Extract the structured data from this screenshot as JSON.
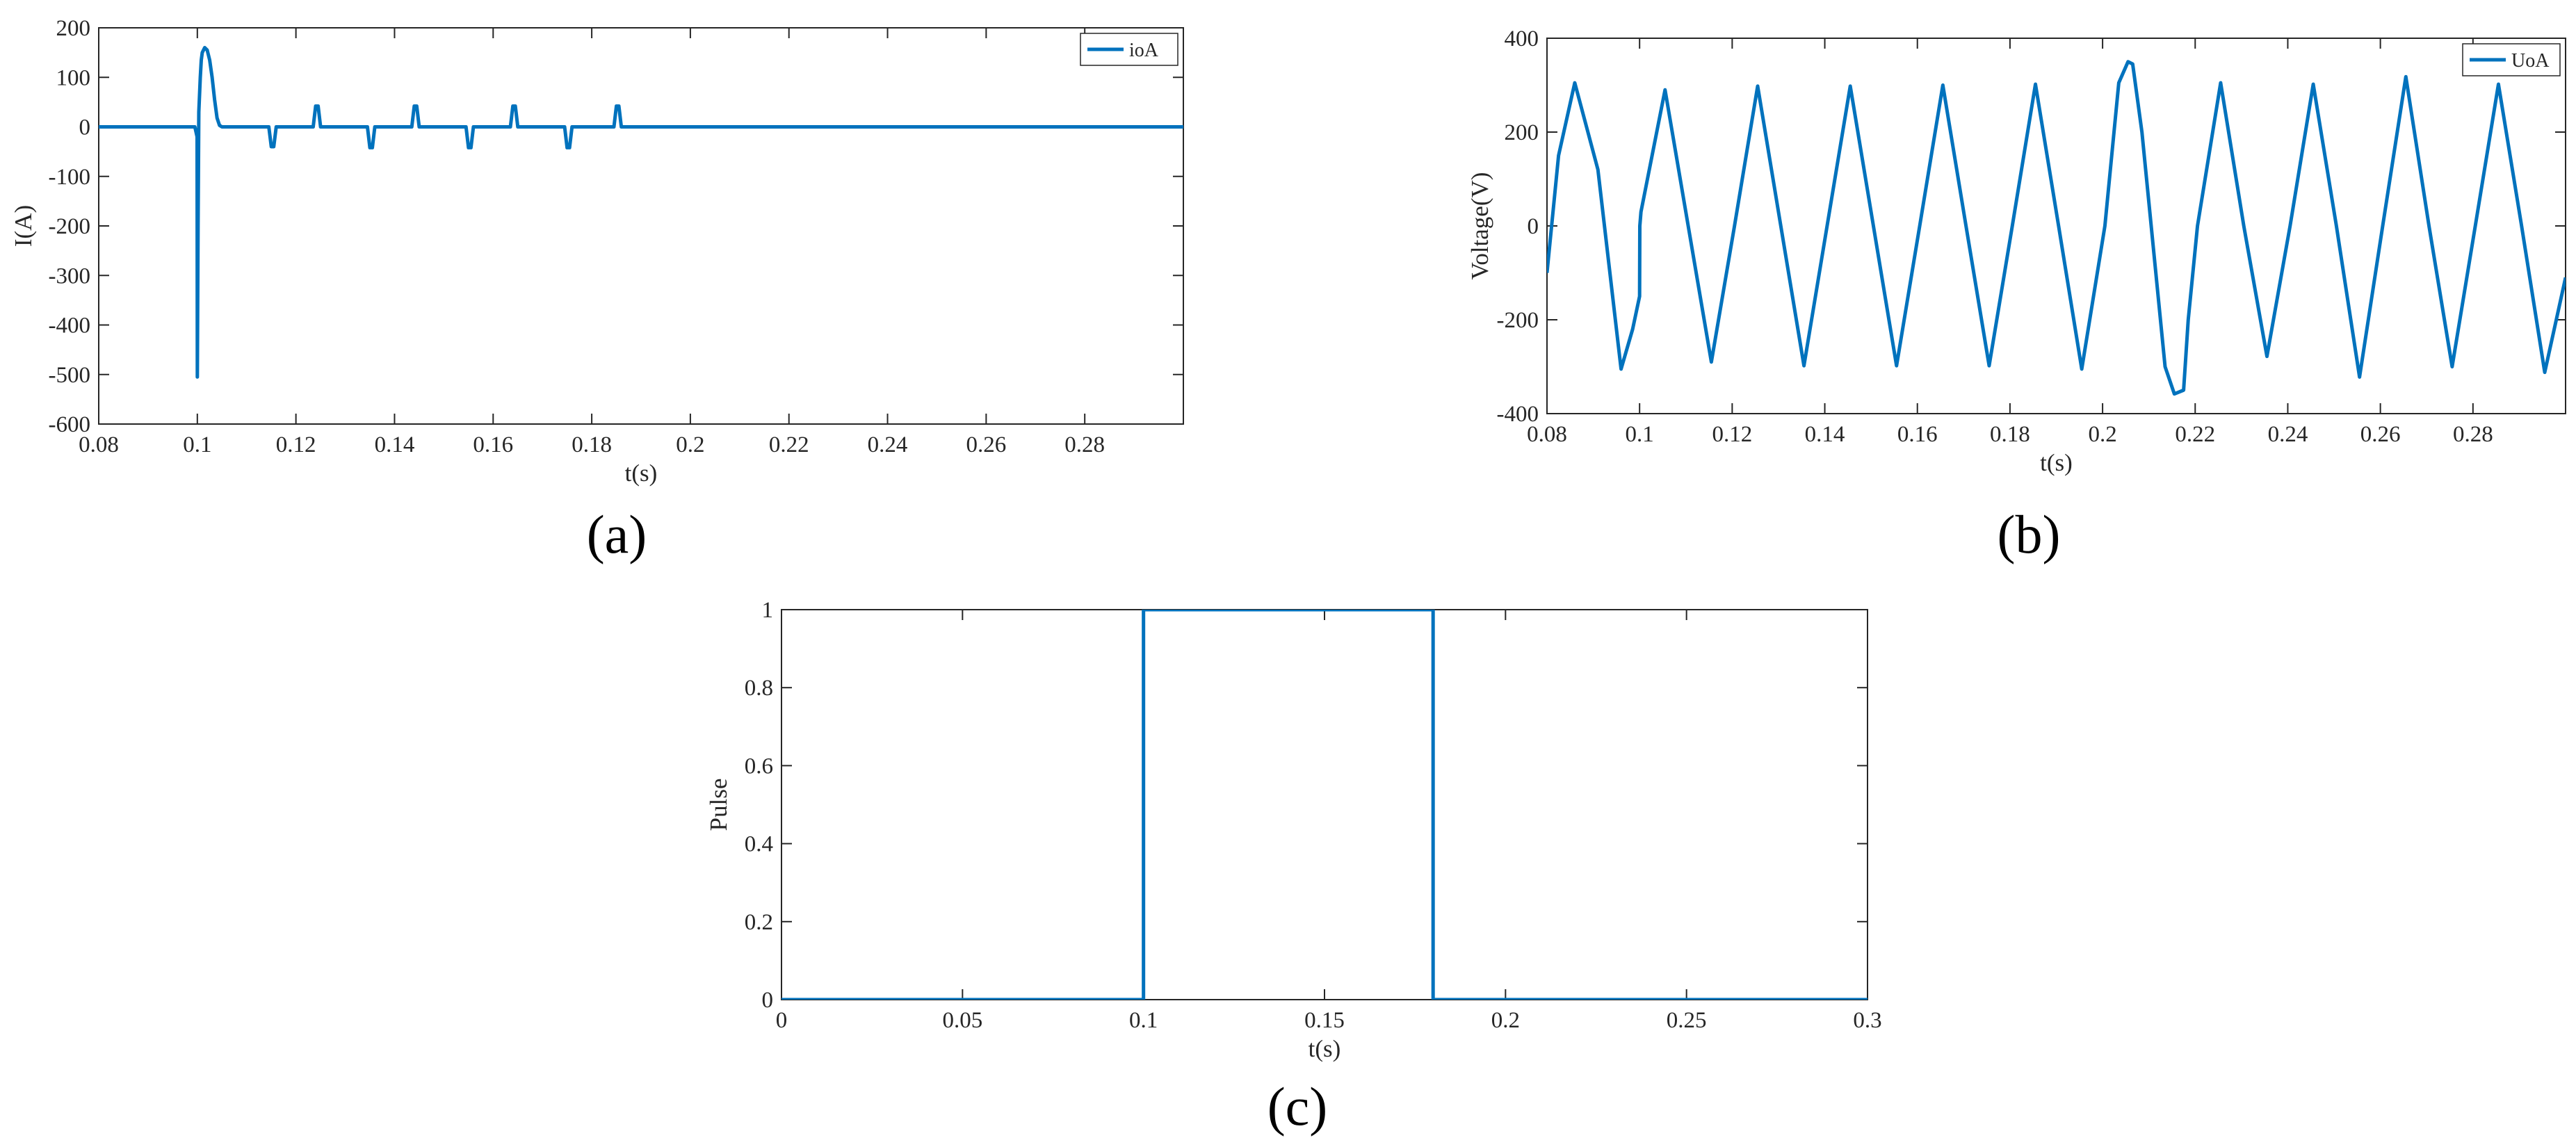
{
  "figure": {
    "panels": [
      {
        "id": "a",
        "caption": "(a)"
      },
      {
        "id": "b",
        "caption": "(b)"
      },
      {
        "id": "c",
        "caption": "(c)"
      }
    ]
  },
  "colors": {
    "series": "#0072BD",
    "axis": "#262626",
    "background": "#ffffff"
  },
  "chart_data": [
    {
      "panel": "a",
      "type": "line",
      "title": "",
      "xlabel": "t(s)",
      "ylabel": "I(A)",
      "xlim": [
        0.08,
        0.3
      ],
      "ylim": [
        -600,
        200
      ],
      "xticks": [
        0.08,
        0.1,
        0.12,
        0.14,
        0.16,
        0.18,
        0.2,
        0.22,
        0.24,
        0.26,
        0.28
      ],
      "xtick_labels": [
        "0.08",
        "0.1",
        "0.12",
        "0.14",
        "0.16",
        "0.18",
        "0.2",
        "0.22",
        "0.24",
        "0.26",
        "0.28"
      ],
      "yticks": [
        -600,
        -500,
        -400,
        -300,
        -200,
        -100,
        0,
        100,
        200
      ],
      "ytick_labels": [
        "-600",
        "-500",
        "-400",
        "-300",
        "-200",
        "-100",
        "0",
        "100",
        "200"
      ],
      "legend": {
        "position": "top-right"
      },
      "grid": false,
      "series": [
        {
          "name": "ioA",
          "x": [
            0.08,
            0.0995,
            0.09995,
            0.1,
            0.10015,
            0.1003,
            0.1006,
            0.1008,
            0.101,
            0.1015,
            0.102,
            0.1025,
            0.103,
            0.1035,
            0.104,
            0.1045,
            0.105,
            0.1145,
            0.115,
            0.1155,
            0.116,
            0.1235,
            0.124,
            0.1245,
            0.125,
            0.1345,
            0.135,
            0.1355,
            0.136,
            0.1435,
            0.144,
            0.1445,
            0.145,
            0.1545,
            0.155,
            0.1555,
            0.156,
            0.1635,
            0.164,
            0.1645,
            0.165,
            0.1745,
            0.175,
            0.1755,
            0.176,
            0.1845,
            0.185,
            0.1855,
            0.186,
            0.3
          ],
          "y": [
            0,
            0,
            -20,
            -505,
            -200,
            30,
            100,
            135,
            150,
            160,
            155,
            135,
            100,
            55,
            18,
            3,
            0,
            0,
            -40,
            -40,
            0,
            0,
            42,
            42,
            0,
            0,
            -42,
            -42,
            0,
            0,
            42,
            42,
            0,
            0,
            -42,
            -42,
            0,
            0,
            42,
            42,
            0,
            0,
            -42,
            -42,
            0,
            0,
            42,
            42,
            0,
            0
          ]
        }
      ]
    },
    {
      "panel": "b",
      "type": "line",
      "title": "",
      "xlabel": "t(s)",
      "ylabel": "Voltage(V)",
      "xlim": [
        0.08,
        0.3
      ],
      "ylim": [
        -400,
        400
      ],
      "xticks": [
        0.08,
        0.1,
        0.12,
        0.14,
        0.16,
        0.18,
        0.2,
        0.22,
        0.24,
        0.26,
        0.28
      ],
      "xtick_labels": [
        "0.08",
        "0.1",
        "0.12",
        "0.14",
        "0.16",
        "0.18",
        "0.2",
        "0.22",
        "0.24",
        "0.26",
        "0.28"
      ],
      "yticks": [
        -400,
        -200,
        0,
        200,
        400
      ],
      "ytick_labels": [
        "-400",
        "-200",
        "0",
        "200",
        "400"
      ],
      "legend": {
        "position": "top-right"
      },
      "grid": false,
      "series": [
        {
          "name": "UoA",
          "x": [
            0.08,
            0.0825,
            0.086,
            0.091,
            0.096,
            0.0985,
            0.1,
            0.10005,
            0.1003,
            0.1055,
            0.1105,
            0.1155,
            0.1205,
            0.1255,
            0.1305,
            0.1355,
            0.1405,
            0.1455,
            0.1505,
            0.1555,
            0.1605,
            0.1655,
            0.1705,
            0.1755,
            0.1805,
            0.1855,
            0.1905,
            0.1955,
            0.2005,
            0.2035,
            0.2055,
            0.2065,
            0.2085,
            0.2135,
            0.2155,
            0.2175,
            0.2185,
            0.2205,
            0.2255,
            0.2305,
            0.2355,
            0.2405,
            0.2455,
            0.2505,
            0.2555,
            0.2605,
            0.2655,
            0.2705,
            0.2755,
            0.2805,
            0.2855,
            0.2905,
            0.2955,
            0.3
          ],
          "y": [
            -100,
            150,
            305,
            120,
            -305,
            -220,
            -150,
            0,
            30,
            290,
            0,
            -290,
            0,
            298,
            0,
            -298,
            0,
            298,
            0,
            -298,
            0,
            300,
            0,
            -298,
            0,
            302,
            0,
            -305,
            0,
            305,
            350,
            345,
            200,
            -300,
            -358,
            -350,
            -200,
            0,
            305,
            0,
            -278,
            0,
            302,
            0,
            -322,
            0,
            318,
            0,
            -300,
            0,
            302,
            0,
            -312,
            -110
          ]
        }
      ]
    },
    {
      "panel": "c",
      "type": "line",
      "title": "",
      "xlabel": "t(s)",
      "ylabel": "Pulse",
      "xlim": [
        0,
        0.3
      ],
      "ylim": [
        0,
        1
      ],
      "xticks": [
        0,
        0.05,
        0.1,
        0.15,
        0.2,
        0.25,
        0.3
      ],
      "xtick_labels": [
        "0",
        "0.05",
        "0.1",
        "0.15",
        "0.2",
        "0.25",
        "0.3"
      ],
      "yticks": [
        0,
        0.2,
        0.4,
        0.6,
        0.8,
        1
      ],
      "ytick_labels": [
        "0",
        "0.2",
        "0.4",
        "0.6",
        "0.8",
        "1"
      ],
      "grid": false,
      "series": [
        {
          "x": [
            0,
            0.1,
            0.1,
            0.18,
            0.18,
            0.3
          ],
          "y": [
            0,
            0,
            1,
            1,
            0,
            0
          ]
        }
      ]
    }
  ]
}
